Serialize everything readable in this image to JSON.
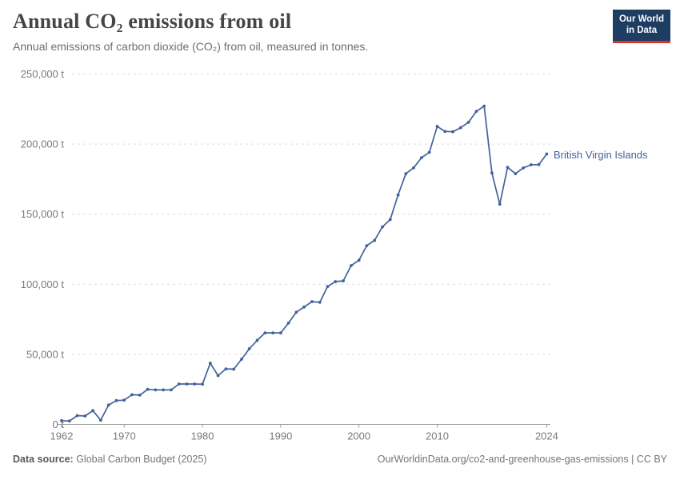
{
  "header": {
    "title": "Annual CO₂ emissions from oil",
    "subtitle": "Annual emissions of carbon dioxide (CO₂) from oil, measured in tonnes.",
    "logo": {
      "line1": "Our World",
      "line2": "in Data"
    }
  },
  "chart_data": {
    "type": "line",
    "title": "Annual CO₂ emissions from oil",
    "xlabel": "",
    "ylabel": "",
    "xlim": [
      1962,
      2024
    ],
    "ylim": [
      0,
      250000
    ],
    "grid": "horizontal-dashed",
    "legend_position": "right-of-line-end",
    "x_ticks": [
      1962,
      1970,
      1980,
      1990,
      2000,
      2010,
      2024
    ],
    "y_ticks": [
      {
        "value": 0,
        "label": "0 t"
      },
      {
        "value": 50000,
        "label": "50,000 t"
      },
      {
        "value": 100000,
        "label": "100,000 t"
      },
      {
        "value": 150000,
        "label": "150,000 t"
      },
      {
        "value": 200000,
        "label": "200,000 t"
      },
      {
        "value": 250000,
        "label": "250,000 t"
      }
    ],
    "series": [
      {
        "name": "British Virgin Islands",
        "color": "#41629b",
        "x": [
          1962,
          1963,
          1964,
          1965,
          1966,
          1967,
          1968,
          1969,
          1970,
          1971,
          1972,
          1973,
          1974,
          1975,
          1976,
          1977,
          1978,
          1979,
          1980,
          1981,
          1982,
          1983,
          1984,
          1985,
          1986,
          1987,
          1988,
          1989,
          1990,
          1991,
          1992,
          1993,
          1994,
          1995,
          1996,
          1997,
          1998,
          1999,
          2000,
          2001,
          2002,
          2003,
          2004,
          2005,
          2006,
          2007,
          2008,
          2009,
          2010,
          2011,
          2012,
          2013,
          2014,
          2015,
          2016,
          2017,
          2018,
          2019,
          2020,
          2021,
          2022,
          2023,
          2024
        ],
        "values": [
          2700,
          2400,
          6300,
          6000,
          9800,
          3000,
          13800,
          17000,
          17300,
          21200,
          20900,
          25000,
          24600,
          24600,
          24600,
          28800,
          28800,
          28800,
          28700,
          43700,
          34800,
          39600,
          39400,
          46500,
          54000,
          60000,
          65300,
          65300,
          65300,
          72300,
          80000,
          83800,
          87600,
          87100,
          98400,
          101900,
          102400,
          113300,
          117100,
          127500,
          131300,
          140900,
          146200,
          163700,
          178900,
          183100,
          190300,
          194100,
          212600,
          209000,
          208800,
          211700,
          215500,
          223300,
          227100,
          179400,
          157100,
          183400,
          178900,
          183000,
          185200,
          185400,
          192900
        ]
      }
    ]
  },
  "footer": {
    "source_label": "Data source:",
    "source_value": " Global Carbon Budget (2025)",
    "link": "OurWorldinData.org/co2-and-greenhouse-gas-emissions | CC BY"
  },
  "colors": {
    "line": "#41629b",
    "logo_navy": "#1d3d63",
    "logo_red": "#d8352a",
    "axis": "#9e9e9e",
    "gridline": "#dcdcdc",
    "tick_text": "#7a7a7a"
  }
}
